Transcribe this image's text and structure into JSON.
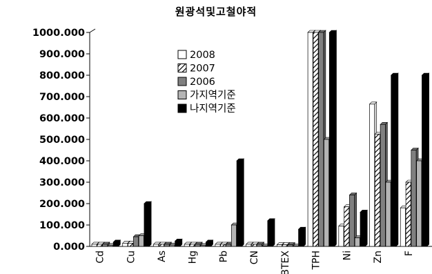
{
  "chart_data": {
    "type": "bar",
    "title": "원광석및고철야적",
    "xlabel": "",
    "ylabel": "",
    "ylim": [
      0,
      1000
    ],
    "y_ticks": [
      "0.000",
      "100.000",
      "200.000",
      "300.000",
      "400.000",
      "500.000",
      "600.000",
      "700.000",
      "800.000",
      "900.000",
      "1000.000"
    ],
    "categories": [
      "Cd",
      "Cu",
      "As",
      "Hg",
      "Pb",
      "CN",
      "BTEX",
      "TPH",
      "Ni",
      "Zn",
      "F"
    ],
    "legend_position": "top-center",
    "grid": false,
    "bar_style": "3d",
    "series": [
      {
        "name": "2008",
        "fill": "#ffffff",
        "pattern": "none",
        "values": [
          10,
          15,
          10,
          10,
          10,
          10,
          8,
          1000,
          95,
          665,
          180
        ]
      },
      {
        "name": "2007",
        "fill": "#ffffff",
        "pattern": "hatch",
        "values": [
          10,
          15,
          10,
          10,
          10,
          10,
          8,
          1000,
          185,
          525,
          300
        ]
      },
      {
        "name": "2006",
        "fill": "#808080",
        "pattern": "none",
        "values": [
          10,
          45,
          10,
          10,
          10,
          10,
          8,
          1000,
          240,
          570,
          450
        ]
      },
      {
        "name": "가지역기준",
        "fill": "#b4b4b4",
        "pattern": "none",
        "values": [
          4,
          50,
          6,
          4,
          100,
          2,
          1,
          500,
          40,
          300,
          400
        ]
      },
      {
        "name": "나지역기준",
        "fill": "#000000",
        "pattern": "none",
        "values": [
          20,
          200,
          25,
          20,
          400,
          120,
          80,
          1000,
          160,
          800,
          800
        ]
      }
    ]
  }
}
